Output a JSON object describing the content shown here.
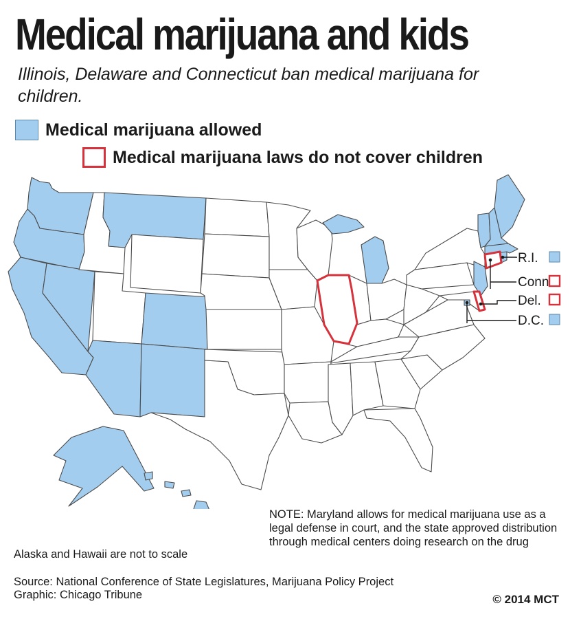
{
  "title": "Medical marijuana and kids",
  "subtitle": "Illinois, Delaware and Connecticut ban medical marijuana for children.",
  "legend": {
    "allowed": "Medical marijuana allowed",
    "no_cover": "Medical marijuana laws do not cover children"
  },
  "colors": {
    "allowed": "#a3cdee",
    "no_cover_outline": "#d5323b",
    "state_fill": "#ffffff",
    "state_border": "#4a4a4a"
  },
  "categories": {
    "allowed": [
      "Washington",
      "Oregon",
      "California",
      "Nevada",
      "Montana",
      "Colorado",
      "Arizona",
      "New Mexico",
      "Alaska",
      "Hawaii",
      "Michigan",
      "Maine",
      "Vermont",
      "New Hampshire",
      "Massachusetts",
      "Rhode Island",
      "New Jersey",
      "D.C."
    ],
    "no_cover": [
      "Illinois",
      "Connecticut",
      "Delaware"
    ]
  },
  "callouts": [
    {
      "label": "R.I.",
      "category": "allowed"
    },
    {
      "label": "Conn.",
      "category": "no_cover"
    },
    {
      "label": "Del.",
      "category": "no_cover"
    },
    {
      "label": "D.C.",
      "category": "allowed"
    }
  ],
  "note": "NOTE: Maryland allows for medical marijuana use as a legal defense in court, and the state approved distribution through medical centers doing research on the drug",
  "scale_note": "Alaska and Hawaii are not to scale",
  "source": "Source: National Conference of State Legislatures, Marijuana Policy Project",
  "credit": "Graphic: Chicago Tribune",
  "copyright": "© 2014 MCT"
}
